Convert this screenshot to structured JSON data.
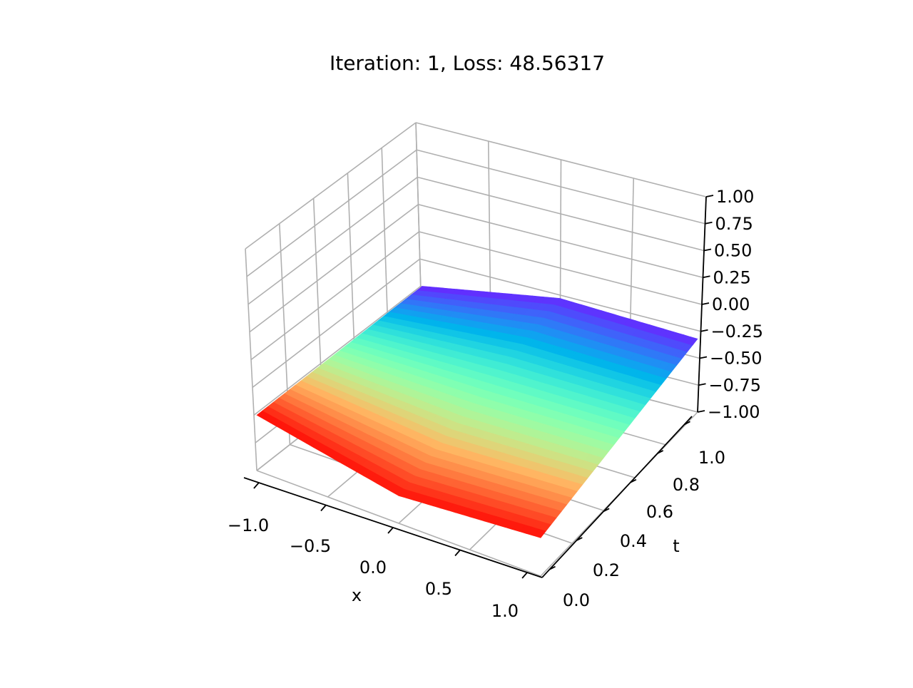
{
  "figure": {
    "title": "Iteration: 1, Loss: 48.56317"
  },
  "chart_data": {
    "type": "surface3d",
    "title": "Iteration: 1, Loss: 48.56317",
    "xlabel": "x",
    "ylabel": "t",
    "zlabel": "",
    "xlim": [
      -1.0,
      1.0
    ],
    "ylim": [
      0.0,
      1.0
    ],
    "zlim": [
      -1.0,
      1.0
    ],
    "xticks": [
      -1.0,
      -0.5,
      0.0,
      0.5,
      1.0
    ],
    "xtick_labels": [
      "−1.0",
      "−0.5",
      "0.0",
      "0.5",
      "1.0"
    ],
    "yticks": [
      0.0,
      0.2,
      0.4,
      0.6,
      0.8,
      1.0
    ],
    "ytick_labels": [
      "0.0",
      "0.2",
      "0.4",
      "0.6",
      "0.8",
      "1.0"
    ],
    "zticks": [
      -1.0,
      -0.75,
      -0.5,
      -0.25,
      0.0,
      0.25,
      0.5,
      0.75,
      1.0
    ],
    "ztick_labels": [
      "−1.00",
      "−0.75",
      "−0.50",
      "−0.25",
      "0.00",
      "0.25",
      "0.50",
      "0.75",
      "1.00"
    ],
    "grid": true,
    "colormap": "rainbow",
    "surface_z": {
      "x": [
        -1.0,
        0.0,
        1.0
      ],
      "t": [
        0.0,
        1.0
      ],
      "values": [
        [
          -0.5,
          -0.5
        ],
        [
          -0.75,
          -0.28
        ],
        [
          -0.65,
          -0.32
        ]
      ]
    }
  }
}
